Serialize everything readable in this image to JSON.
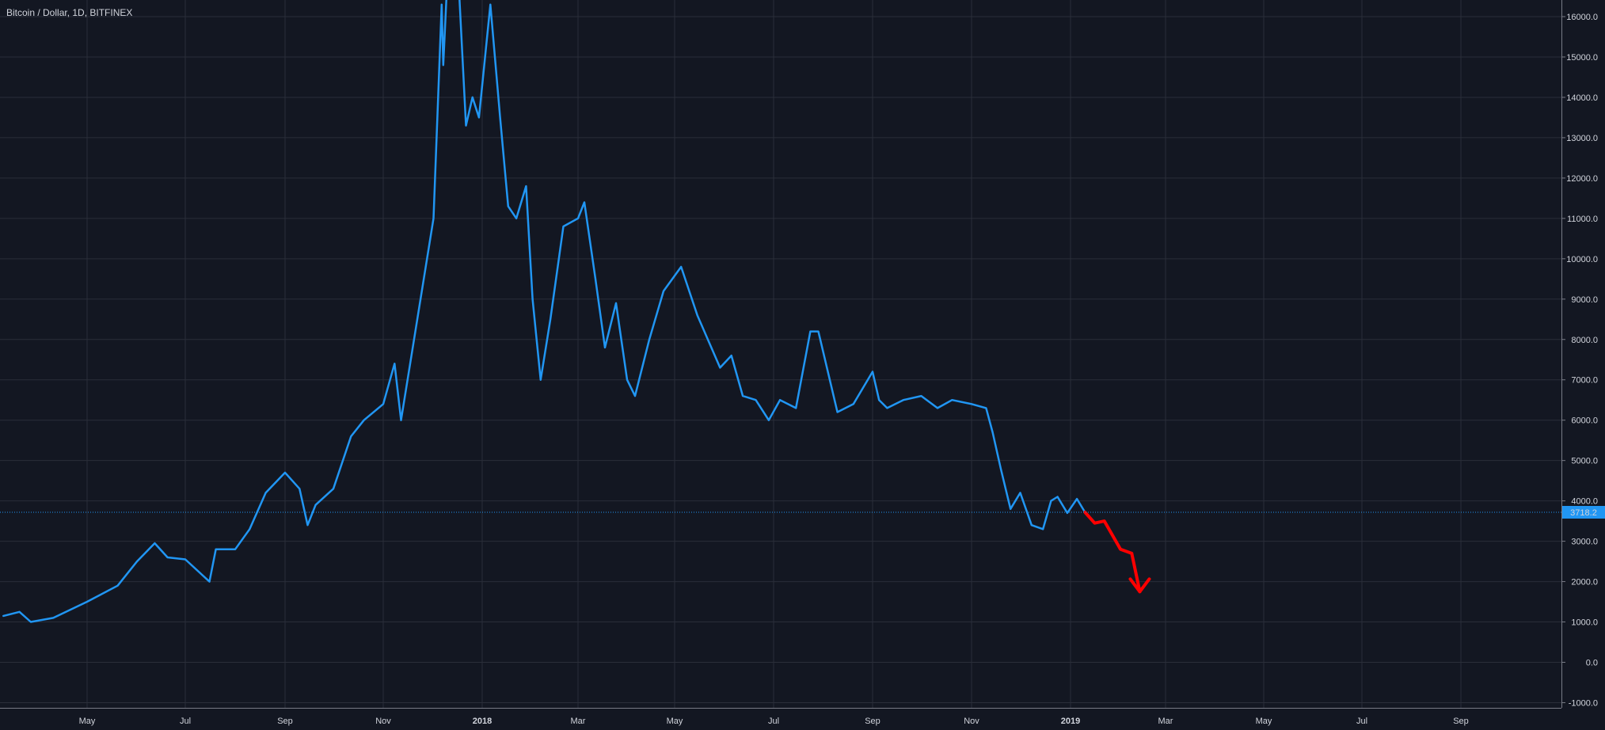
{
  "title": "Bitcoin / Dollar, 1D, BITFINEX",
  "colors": {
    "background": "#131722",
    "grid": "#2a2e39",
    "axis_text": "#d1d4dc",
    "series_line": "#2196f3",
    "current_price_line": "#2196f3",
    "current_price_badge": "#2196f3",
    "forecast_arrow": "#ff0000"
  },
  "chart_data": {
    "type": "line",
    "title": "Bitcoin / Dollar, 1D, BITFINEX",
    "x_ticks": [
      "May",
      "Jul",
      "Sep",
      "Nov",
      "2018",
      "Mar",
      "May",
      "Jul",
      "Sep",
      "Nov",
      "2019",
      "Mar",
      "May",
      "Jul",
      "Sep"
    ],
    "y_ticks": [
      "16000.0",
      "15000.0",
      "14000.0",
      "13000.0",
      "12000.0",
      "11000.0",
      "10000.0",
      "9000.0",
      "8000.0",
      "7000.0",
      "6000.0",
      "5000.0",
      "4000.0",
      "3000.0",
      "2000.0",
      "1000.0",
      "0.0",
      "-1000.0"
    ],
    "ylim": [
      -1000,
      16300
    ],
    "grid": true,
    "current_price": 3718.2,
    "current_price_label": "3718.2",
    "series": [
      {
        "name": "",
        "x": [
          "2017-03-10",
          "2017-03-20",
          "2017-03-27",
          "2017-04-10",
          "2017-05-01",
          "2017-05-20",
          "2017-06-01",
          "2017-06-12",
          "2017-06-20",
          "2017-07-01",
          "2017-07-16",
          "2017-07-20",
          "2017-08-01",
          "2017-08-10",
          "2017-08-20",
          "2017-09-01",
          "2017-09-10",
          "2017-09-15",
          "2017-09-20",
          "2017-10-01",
          "2017-10-12",
          "2017-10-20",
          "2017-11-01",
          "2017-11-08",
          "2017-11-12",
          "2017-11-20",
          "2017-11-28",
          "2017-12-02",
          "2017-12-07",
          "2017-12-08",
          "2017-12-10",
          "2017-12-17",
          "2017-12-22",
          "2017-12-26",
          "2017-12-30",
          "2018-01-06",
          "2018-01-12",
          "2018-01-17",
          "2018-01-22",
          "2018-01-28",
          "2018-02-01",
          "2018-02-06",
          "2018-02-12",
          "2018-02-20",
          "2018-03-01",
          "2018-03-05",
          "2018-03-12",
          "2018-03-18",
          "2018-03-25",
          "2018-04-01",
          "2018-04-06",
          "2018-04-15",
          "2018-04-24",
          "2018-05-05",
          "2018-05-15",
          "2018-05-29",
          "2018-06-05",
          "2018-06-12",
          "2018-06-20",
          "2018-06-28",
          "2018-07-05",
          "2018-07-15",
          "2018-07-24",
          "2018-07-29",
          "2018-08-10",
          "2018-08-20",
          "2018-09-01",
          "2018-09-05",
          "2018-09-10",
          "2018-09-20",
          "2018-10-01",
          "2018-10-11",
          "2018-10-20",
          "2018-11-01",
          "2018-11-10",
          "2018-11-14",
          "2018-11-19",
          "2018-11-25",
          "2018-12-01",
          "2018-12-08",
          "2018-12-15",
          "2018-12-20",
          "2018-12-24",
          "2018-12-30",
          "2019-01-05",
          "2019-01-10"
        ],
        "y": [
          1150,
          1250,
          1000,
          1100,
          1500,
          1900,
          2500,
          2950,
          2600,
          2550,
          2000,
          2800,
          2800,
          3300,
          4200,
          4700,
          4300,
          3400,
          3900,
          4300,
          5600,
          6000,
          6400,
          7400,
          6000,
          8000,
          10000,
          11000,
          16300,
          14800,
          16500,
          17200,
          13300,
          14000,
          13500,
          16300,
          13500,
          11300,
          11000,
          11800,
          9000,
          7000,
          8500,
          10800,
          11000,
          11400,
          9500,
          7800,
          8900,
          7000,
          6600,
          8000,
          9200,
          9800,
          8600,
          7300,
          7600,
          6600,
          6500,
          6000,
          6500,
          6300,
          8200,
          8200,
          6200,
          6400,
          7200,
          6500,
          6300,
          6500,
          6600,
          6300,
          6500,
          6400,
          6300,
          5700,
          4800,
          3800,
          4200,
          3400,
          3300,
          4000,
          4100,
          3700,
          4050,
          3718
        ]
      }
    ],
    "annotation": {
      "type": "forecast-arrow",
      "x": [
        "2019-01-10",
        "2019-01-16",
        "2019-01-22",
        "2019-02-01",
        "2019-02-08",
        "2019-02-13"
      ],
      "y": [
        3718,
        3450,
        3500,
        2800,
        2700,
        1750
      ]
    }
  }
}
